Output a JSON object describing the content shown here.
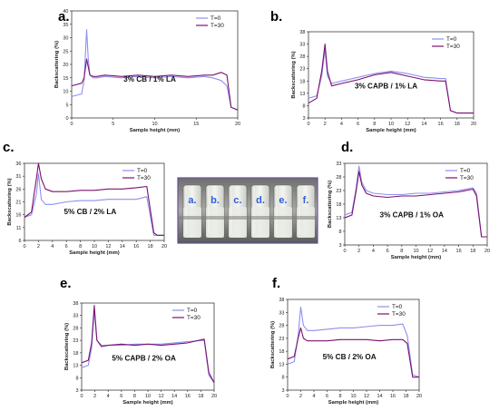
{
  "photo": {
    "labels": [
      "a.",
      "b.",
      "c.",
      "d.",
      "e.",
      "f."
    ]
  },
  "chart_data": [
    {
      "panel": "a.",
      "type": "line",
      "annotation": "3% CB / 1% LA",
      "xlabel": "Sample height (mm)",
      "ylabel": "Backscattering (%)",
      "xlim": [
        0,
        20
      ],
      "ylim": [
        0,
        40
      ],
      "xticks": [
        0,
        5,
        10,
        15,
        20
      ],
      "yticks": [
        0,
        5,
        10,
        15,
        20,
        25,
        30,
        35,
        40
      ],
      "legend": "top-right",
      "series": [
        {
          "name": "T=0",
          "color": "#8f8ff0",
          "x": [
            0,
            1.2,
            1.5,
            1.8,
            2.0,
            2.2,
            2.6,
            3,
            4,
            6,
            8,
            10,
            12,
            14,
            16,
            17,
            18,
            18.7,
            19.2,
            20
          ],
          "y": [
            8,
            9,
            14,
            33,
            22,
            16,
            15,
            15,
            15.5,
            15,
            15.5,
            15,
            15.5,
            15,
            15.5,
            15,
            14,
            12,
            4,
            3
          ]
        },
        {
          "name": "T=30",
          "color": "#7a1270",
          "x": [
            0,
            1.2,
            1.5,
            1.8,
            2.0,
            2.2,
            2.6,
            3,
            4,
            6,
            8,
            10,
            12,
            14,
            16,
            17,
            18,
            18.7,
            19.2,
            20
          ],
          "y": [
            12,
            13,
            15,
            22,
            19,
            16,
            15.5,
            15.5,
            16,
            15.5,
            16,
            15.5,
            16,
            15.5,
            16,
            16,
            17,
            16,
            4,
            3
          ]
        }
      ]
    },
    {
      "panel": "b.",
      "type": "line",
      "annotation": "3% CAPB / 1% LA",
      "xlabel": "Sample height (mm)",
      "ylabel": "Backscattering (%)",
      "xlim": [
        0,
        20
      ],
      "ylim": [
        3,
        38
      ],
      "xticks": [
        0,
        2,
        4,
        6,
        8,
        10,
        12,
        14,
        16,
        18,
        20
      ],
      "yticks": [
        3,
        8,
        13,
        18,
        23,
        28,
        33,
        38
      ],
      "legend": "top-right",
      "series": [
        {
          "name": "T=0",
          "color": "#8f8ff0",
          "x": [
            0,
            1,
            1.6,
            2.0,
            2.3,
            2.8,
            4,
            6,
            8,
            10,
            12,
            14,
            16,
            16.6,
            17.2,
            18,
            20
          ],
          "y": [
            11,
            12,
            20,
            31,
            20,
            17,
            18,
            19.5,
            21,
            22,
            21,
            19.5,
            19,
            19,
            6,
            5,
            5
          ]
        },
        {
          "name": "T=30",
          "color": "#7a1270",
          "x": [
            0,
            1,
            1.6,
            2.0,
            2.3,
            2.8,
            4,
            6,
            8,
            10,
            12,
            14,
            16,
            16.6,
            17.2,
            18,
            20
          ],
          "y": [
            9,
            11,
            22,
            33,
            22,
            16,
            17,
            18.5,
            20.5,
            21.5,
            20,
            18.5,
            18,
            18,
            6,
            5,
            5
          ]
        }
      ]
    },
    {
      "panel": "c.",
      "type": "line",
      "annotation": "5% CB / 2% LA",
      "xlabel": "Sample height (mm)",
      "ylabel": "Backscattering (%)",
      "xlim": [
        0,
        20
      ],
      "ylim": [
        6,
        36
      ],
      "xticks": [
        0,
        2,
        4,
        6,
        8,
        10,
        12,
        14,
        16,
        18,
        20
      ],
      "yticks": [
        6,
        11,
        16,
        21,
        26,
        31,
        36
      ],
      "legend": "top-right",
      "series": [
        {
          "name": "T=0",
          "color": "#8f8ff0",
          "x": [
            0,
            1,
            1.7,
            2.0,
            2.4,
            3,
            4,
            6,
            8,
            10,
            12,
            14,
            16,
            17.5,
            18.5,
            19,
            20
          ],
          "y": [
            15,
            16,
            24,
            32,
            22,
            20,
            20,
            21,
            21.5,
            21.5,
            22,
            22,
            22,
            23,
            8,
            8,
            8
          ]
        },
        {
          "name": "T=30",
          "color": "#7a1270",
          "x": [
            0,
            1,
            1.7,
            2.0,
            2.4,
            3,
            4,
            6,
            8,
            10,
            12,
            14,
            16,
            17.5,
            18.5,
            19,
            20
          ],
          "y": [
            15,
            17,
            30,
            36,
            30,
            26,
            25,
            25,
            25.5,
            25.5,
            26,
            26,
            26.5,
            27,
            9,
            8,
            8
          ]
        }
      ]
    },
    {
      "panel": "d.",
      "type": "line",
      "annotation": "3% CAPB / 1% OA",
      "xlabel": "Sample height (mm)",
      "ylabel": "Backscattering (%)",
      "xlim": [
        0,
        20
      ],
      "ylim": [
        3,
        33
      ],
      "xticks": [
        0,
        2,
        4,
        6,
        8,
        10,
        12,
        14,
        16,
        18,
        20
      ],
      "yticks": [
        3,
        8,
        13,
        18,
        23,
        28,
        33
      ],
      "legend": "top-right",
      "series": [
        {
          "name": "T=0",
          "color": "#8f8ff0",
          "x": [
            0,
            1,
            1.6,
            2.0,
            2.4,
            3,
            4,
            6,
            8,
            10,
            12,
            14,
            16,
            18,
            18.5,
            19.2,
            20
          ],
          "y": [
            14,
            15,
            24,
            32,
            26,
            23,
            22,
            21.5,
            21.5,
            22,
            22,
            22.5,
            23,
            24,
            22,
            6,
            6
          ]
        },
        {
          "name": "T=30",
          "color": "#7a1270",
          "x": [
            0,
            1,
            1.6,
            2.0,
            2.4,
            3,
            4,
            6,
            8,
            10,
            12,
            14,
            16,
            18,
            18.5,
            19.2,
            20
          ],
          "y": [
            13,
            14,
            23,
            30,
            25,
            22,
            21,
            20.5,
            21,
            21,
            21.5,
            22,
            22.5,
            23.5,
            21,
            6,
            6
          ]
        }
      ]
    },
    {
      "panel": "e.",
      "type": "line",
      "annotation": "5% CAPB / 2% OA",
      "xlabel": "Sample height (mm)",
      "ylabel": "Backscattering (%)",
      "xlim": [
        0,
        20
      ],
      "ylim": [
        3,
        38
      ],
      "xticks": [
        0,
        2,
        4,
        6,
        8,
        10,
        12,
        14,
        16,
        18,
        20
      ],
      "yticks": [
        3,
        8,
        13,
        18,
        23,
        28,
        33,
        38
      ],
      "legend": "top-right",
      "series": [
        {
          "name": "T=0",
          "color": "#8f8ff0",
          "x": [
            0,
            1,
            1.5,
            1.9,
            2.3,
            3,
            4,
            6,
            8,
            10,
            12,
            14,
            16,
            18.5,
            19.2,
            20
          ],
          "y": [
            12,
            13,
            20,
            35,
            23,
            21,
            21,
            21,
            21.5,
            21.5,
            21.5,
            22,
            22.5,
            23,
            9,
            6
          ]
        },
        {
          "name": "T=30",
          "color": "#7a1270",
          "x": [
            0,
            1,
            1.5,
            1.9,
            2.3,
            3,
            4,
            6,
            8,
            10,
            12,
            14,
            16,
            18.5,
            19.2,
            20
          ],
          "y": [
            14,
            15,
            22,
            37,
            23,
            20.5,
            21,
            21.5,
            21,
            21.5,
            21,
            21.5,
            22,
            23.5,
            10,
            6
          ]
        }
      ]
    },
    {
      "panel": "f.",
      "type": "line",
      "annotation": "5% CB / 2% OA",
      "xlabel": "Sample height (mm)",
      "ylabel": "Backscattering (%)",
      "xlim": [
        0,
        20
      ],
      "ylim": [
        3,
        38
      ],
      "xticks": [
        0,
        2,
        4,
        6,
        8,
        10,
        12,
        14,
        16,
        18,
        20
      ],
      "yticks": [
        3,
        8,
        13,
        18,
        23,
        28,
        33,
        38
      ],
      "legend": "top-right",
      "series": [
        {
          "name": "T=0",
          "color": "#8f8ff0",
          "x": [
            0,
            1,
            1.6,
            2.0,
            2.4,
            3,
            4,
            6,
            8,
            10,
            12,
            14,
            16,
            17.5,
            18.2,
            19,
            20
          ],
          "y": [
            13,
            14,
            24,
            35,
            28,
            26,
            26,
            26.5,
            27,
            27,
            27.5,
            28,
            28,
            28.5,
            24,
            9,
            8
          ]
        },
        {
          "name": "T=30",
          "color": "#7a1270",
          "x": [
            0,
            1,
            1.6,
            2.0,
            2.4,
            3,
            4,
            6,
            8,
            10,
            12,
            14,
            16,
            17.5,
            18.2,
            19,
            20
          ],
          "y": [
            15,
            16,
            23,
            27,
            23,
            22,
            22,
            22,
            22.5,
            22.5,
            22.5,
            22,
            22.5,
            22.5,
            21,
            8,
            8
          ]
        }
      ]
    }
  ]
}
